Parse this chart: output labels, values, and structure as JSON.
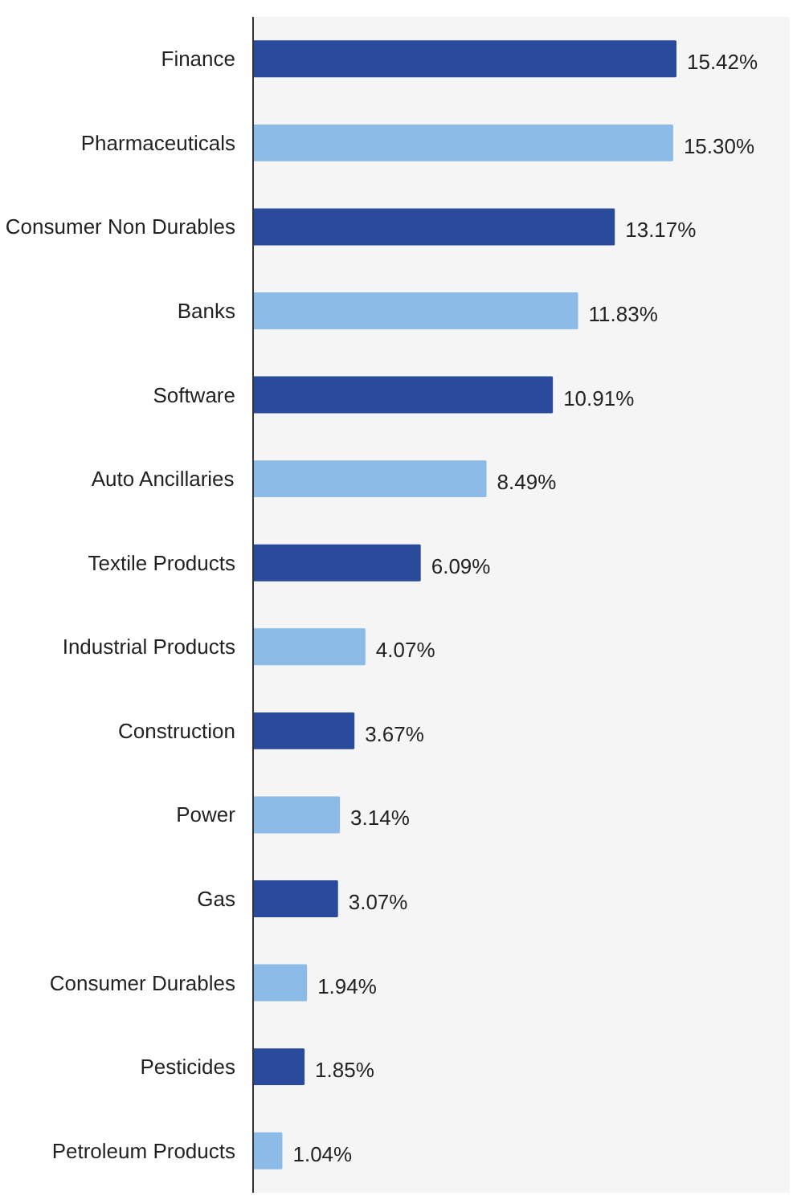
{
  "chart_data": {
    "type": "bar",
    "orientation": "horizontal",
    "categories": [
      "Finance",
      "Pharmaceuticals",
      "Consumer Non Durables",
      "Banks",
      "Software",
      "Auto Ancillaries",
      "Textile Products",
      "Industrial Products",
      "Construction",
      "Power",
      "Gas",
      "Consumer Durables",
      "Pesticides",
      "Petroleum Products"
    ],
    "values": [
      15.42,
      15.3,
      13.17,
      11.83,
      10.91,
      8.49,
      6.09,
      4.07,
      3.67,
      3.14,
      3.07,
      1.94,
      1.85,
      1.04
    ],
    "value_labels": [
      "15.42%",
      "15.30%",
      "13.17%",
      "11.83%",
      "10.91%",
      "8.49%",
      "6.09%",
      "4.07%",
      "3.67%",
      "3.14%",
      "3.07%",
      "1.94%",
      "1.85%",
      "1.04%"
    ],
    "colors": [
      "#2a4b9b",
      "#8cbbe8",
      "#2a4b9b",
      "#8cbbe8",
      "#2a4b9b",
      "#8cbbe8",
      "#2a4b9b",
      "#8cbbe8",
      "#2a4b9b",
      "#8cbbe8",
      "#2a4b9b",
      "#8cbbe8",
      "#2a4b9b",
      "#8cbbe8"
    ],
    "grid": false,
    "tick_labels": "y"
  }
}
